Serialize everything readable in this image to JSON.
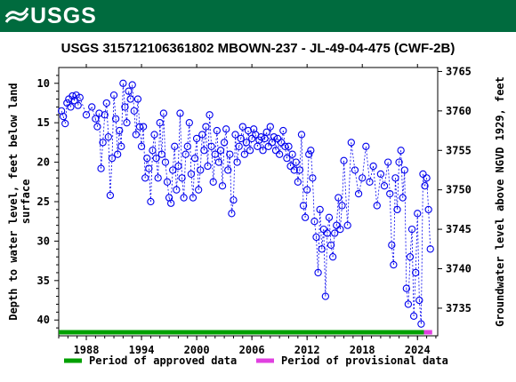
{
  "header": {
    "logo_text": "USGS"
  },
  "chart_data": {
    "type": "scatter",
    "title": "USGS 315712106361802 MBOWN-237 - JL-49-04-475 (CWF-2B)",
    "ylabel_left": [
      "Depth to water level, feet below land",
      "surface"
    ],
    "ylabel_right": "Groundwater level above NGVD 1929, feet",
    "xlim": [
      1985.0,
      2026.2
    ],
    "ylim_left": [
      42,
      8
    ],
    "ylim_right": [
      3731.5,
      3765.5
    ],
    "x_ticks": [
      1988,
      1994,
      2000,
      2006,
      2012,
      2018,
      2024
    ],
    "y_ticks_left": [
      10,
      15,
      20,
      25,
      30,
      35,
      40
    ],
    "y_ticks_right": [
      3765,
      3760,
      3755,
      3750,
      3745,
      3740,
      3735
    ],
    "approved_period": [
      1985.0,
      2024.7
    ],
    "provisional_period": [
      2024.7,
      2025.6
    ],
    "legend": [
      {
        "label": "Period of approved data",
        "color": "#00a000"
      },
      {
        "label": "Period of provisional data",
        "color": "#e040e0"
      }
    ],
    "marker_color": "#0000ee",
    "series": [
      {
        "values": [
          [
            1985.3,
            13.5
          ],
          [
            1985.5,
            14.2
          ],
          [
            1985.7,
            15.1
          ],
          [
            1985.9,
            12.5
          ],
          [
            1986.1,
            12.0
          ],
          [
            1986.3,
            13.0
          ],
          [
            1986.5,
            11.6
          ],
          [
            1986.7,
            12.2
          ],
          [
            1986.9,
            11.5
          ],
          [
            1987.1,
            12.8
          ],
          [
            1987.3,
            11.8
          ],
          [
            1988.0,
            14.0
          ],
          [
            1988.6,
            13.0
          ],
          [
            1989.0,
            14.5
          ],
          [
            1989.2,
            15.5
          ],
          [
            1989.4,
            13.8
          ],
          [
            1989.6,
            20.8
          ],
          [
            1989.8,
            17.5
          ],
          [
            1990.0,
            14.0
          ],
          [
            1990.2,
            12.5
          ],
          [
            1990.4,
            16.8
          ],
          [
            1990.6,
            24.2
          ],
          [
            1990.8,
            19.5
          ],
          [
            1991.0,
            11.5
          ],
          [
            1991.2,
            14.5
          ],
          [
            1991.4,
            19.0
          ],
          [
            1991.6,
            16.0
          ],
          [
            1991.8,
            18.0
          ],
          [
            1992.0,
            10.0
          ],
          [
            1992.2,
            13.0
          ],
          [
            1992.4,
            15.0
          ],
          [
            1992.6,
            11.0
          ],
          [
            1992.8,
            12.0
          ],
          [
            1993.0,
            10.2
          ],
          [
            1993.2,
            13.5
          ],
          [
            1993.4,
            16.5
          ],
          [
            1993.6,
            12.0
          ],
          [
            1993.8,
            15.5
          ],
          [
            1994.0,
            18.0
          ],
          [
            1994.2,
            15.5
          ],
          [
            1994.4,
            22.0
          ],
          [
            1994.6,
            19.5
          ],
          [
            1994.8,
            20.8
          ],
          [
            1995.0,
            25.0
          ],
          [
            1995.2,
            18.5
          ],
          [
            1995.4,
            16.5
          ],
          [
            1995.6,
            19.5
          ],
          [
            1995.8,
            22.0
          ],
          [
            1996.0,
            15.0
          ],
          [
            1996.2,
            19.0
          ],
          [
            1996.4,
            13.8
          ],
          [
            1996.6,
            20.0
          ],
          [
            1996.8,
            22.5
          ],
          [
            1997.0,
            24.5
          ],
          [
            1997.2,
            25.2
          ],
          [
            1997.4,
            21.0
          ],
          [
            1997.6,
            18.0
          ],
          [
            1997.8,
            23.5
          ],
          [
            1998.0,
            20.5
          ],
          [
            1998.2,
            13.8
          ],
          [
            1998.4,
            22.0
          ],
          [
            1998.6,
            24.5
          ],
          [
            1998.8,
            19.0
          ],
          [
            1999.0,
            18.0
          ],
          [
            1999.2,
            15.0
          ],
          [
            1999.4,
            21.5
          ],
          [
            1999.6,
            24.5
          ],
          [
            1999.8,
            19.5
          ],
          [
            2000.0,
            17.0
          ],
          [
            2000.2,
            23.5
          ],
          [
            2000.4,
            21.0
          ],
          [
            2000.6,
            16.5
          ],
          [
            2000.8,
            18.5
          ],
          [
            2001.0,
            15.5
          ],
          [
            2001.2,
            20.5
          ],
          [
            2001.4,
            14.0
          ],
          [
            2001.6,
            18.0
          ],
          [
            2001.8,
            22.5
          ],
          [
            2002.0,
            19.0
          ],
          [
            2002.2,
            16.0
          ],
          [
            2002.4,
            20.0
          ],
          [
            2002.6,
            18.5
          ],
          [
            2002.8,
            23.0
          ],
          [
            2003.0,
            17.5
          ],
          [
            2003.2,
            15.8
          ],
          [
            2003.4,
            21.0
          ],
          [
            2003.6,
            19.0
          ],
          [
            2003.8,
            26.5
          ],
          [
            2004.0,
            24.8
          ],
          [
            2004.2,
            16.5
          ],
          [
            2004.4,
            20.0
          ],
          [
            2004.6,
            18.0
          ],
          [
            2004.8,
            17.0
          ],
          [
            2005.0,
            15.5
          ],
          [
            2005.2,
            19.0
          ],
          [
            2005.4,
            17.5
          ],
          [
            2005.6,
            16.0
          ],
          [
            2005.8,
            18.5
          ],
          [
            2006.0,
            17.0
          ],
          [
            2006.2,
            15.8
          ],
          [
            2006.4,
            16.5
          ],
          [
            2006.6,
            18.0
          ],
          [
            2006.8,
            17.2
          ],
          [
            2007.0,
            16.8
          ],
          [
            2007.2,
            18.5
          ],
          [
            2007.4,
            17.0
          ],
          [
            2007.6,
            16.2
          ],
          [
            2007.8,
            18.0
          ],
          [
            2008.0,
            15.5
          ],
          [
            2008.2,
            17.5
          ],
          [
            2008.4,
            16.8
          ],
          [
            2008.6,
            18.5
          ],
          [
            2008.8,
            17.0
          ],
          [
            2009.0,
            19.0
          ],
          [
            2009.2,
            17.5
          ],
          [
            2009.4,
            16.0
          ],
          [
            2009.6,
            18.0
          ],
          [
            2009.8,
            19.5
          ],
          [
            2010.0,
            18.0
          ],
          [
            2010.2,
            20.5
          ],
          [
            2010.4,
            19.0
          ],
          [
            2010.6,
            21.0
          ],
          [
            2010.8,
            20.0
          ],
          [
            2011.0,
            22.5
          ],
          [
            2011.2,
            21.0
          ],
          [
            2011.4,
            16.5
          ],
          [
            2011.6,
            25.5
          ],
          [
            2011.8,
            27.0
          ],
          [
            2012.0,
            23.5
          ],
          [
            2012.2,
            19.0
          ],
          [
            2012.4,
            18.5
          ],
          [
            2012.6,
            22.0
          ],
          [
            2012.8,
            27.5
          ],
          [
            2013.0,
            29.5
          ],
          [
            2013.2,
            34.0
          ],
          [
            2013.4,
            26.0
          ],
          [
            2013.6,
            31.0
          ],
          [
            2013.8,
            28.5
          ],
          [
            2014.0,
            37.0
          ],
          [
            2014.2,
            29.0
          ],
          [
            2014.4,
            27.0
          ],
          [
            2014.6,
            30.5
          ],
          [
            2014.8,
            32.0
          ],
          [
            2015.0,
            29.0
          ],
          [
            2015.2,
            28.0
          ],
          [
            2015.4,
            24.5
          ],
          [
            2015.6,
            28.5
          ],
          [
            2015.8,
            25.5
          ],
          [
            2016.0,
            19.8
          ],
          [
            2016.4,
            28.0
          ],
          [
            2016.8,
            17.5
          ],
          [
            2017.2,
            21.0
          ],
          [
            2017.6,
            24.0
          ],
          [
            2018.0,
            22.0
          ],
          [
            2018.4,
            18.0
          ],
          [
            2018.8,
            22.5
          ],
          [
            2019.2,
            20.5
          ],
          [
            2019.6,
            25.5
          ],
          [
            2020.0,
            21.5
          ],
          [
            2020.4,
            23.0
          ],
          [
            2020.8,
            20.0
          ],
          [
            2021.0,
            24.0
          ],
          [
            2021.2,
            30.5
          ],
          [
            2021.4,
            33.0
          ],
          [
            2021.6,
            22.0
          ],
          [
            2021.8,
            26.0
          ],
          [
            2022.0,
            20.0
          ],
          [
            2022.2,
            18.5
          ],
          [
            2022.4,
            24.5
          ],
          [
            2022.6,
            21.0
          ],
          [
            2022.8,
            36.0
          ],
          [
            2023.0,
            38.0
          ],
          [
            2023.2,
            32.0
          ],
          [
            2023.4,
            28.5
          ],
          [
            2023.6,
            39.5
          ],
          [
            2023.8,
            34.0
          ],
          [
            2024.0,
            26.5
          ],
          [
            2024.2,
            37.5
          ],
          [
            2024.4,
            40.5
          ],
          [
            2024.6,
            21.5
          ],
          [
            2024.8,
            23.0
          ],
          [
            2025.0,
            22.0
          ],
          [
            2025.2,
            26.0
          ],
          [
            2025.4,
            31.0
          ]
        ]
      }
    ]
  }
}
